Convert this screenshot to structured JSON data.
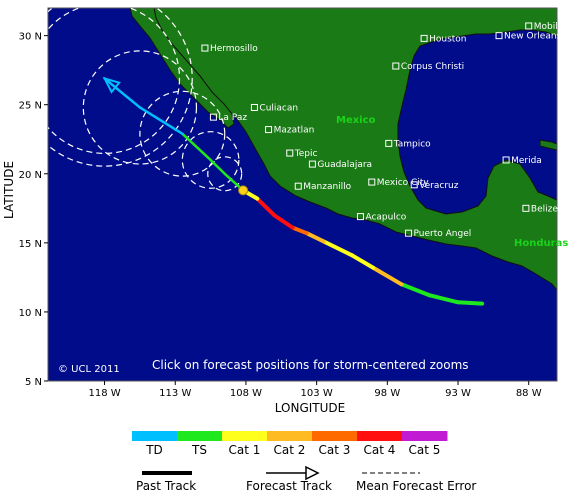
{
  "axes": {
    "lon_ticks": [
      "118 W",
      "113 W",
      "108 W",
      "103 W",
      "98 W",
      "93 W",
      "88 W"
    ],
    "lat_ticks": [
      "30 N",
      "25 N",
      "20 N",
      "15 N",
      "10 N",
      "5 N"
    ],
    "xlabel": "LONGITUDE",
    "ylabel": "LATITUDE",
    "lon_range": [
      -122,
      -86
    ],
    "lat_range": [
      5,
      32
    ]
  },
  "cities": [
    {
      "name": "Hermosillo",
      "lon": -110.9,
      "lat": 29.1
    },
    {
      "name": "Houston",
      "lon": -95.4,
      "lat": 29.8
    },
    {
      "name": "New Orleans",
      "lon": -90.1,
      "lat": 30.0
    },
    {
      "name": "Mobile",
      "lon": -88.0,
      "lat": 30.7
    },
    {
      "name": "Corpus Christi",
      "lon": -97.4,
      "lat": 27.8
    },
    {
      "name": "Culiacan",
      "lon": -107.4,
      "lat": 24.8
    },
    {
      "name": "La Paz",
      "lon": -110.3,
      "lat": 24.1
    },
    {
      "name": "Mazatlan",
      "lon": -106.4,
      "lat": 23.2
    },
    {
      "name": "Tampico",
      "lon": -97.9,
      "lat": 22.2
    },
    {
      "name": "Tepic",
      "lon": -104.9,
      "lat": 21.5
    },
    {
      "name": "Guadalajara",
      "lon": -103.3,
      "lat": 20.7
    },
    {
      "name": "Mexico City",
      "lon": -99.1,
      "lat": 19.4
    },
    {
      "name": "Manzanillo",
      "lon": -104.3,
      "lat": 19.1
    },
    {
      "name": "Veracruz",
      "lon": -96.1,
      "lat": 19.2
    },
    {
      "name": "Merida",
      "lon": -89.6,
      "lat": 21.0
    },
    {
      "name": "Acapulco",
      "lon": -99.9,
      "lat": 16.9
    },
    {
      "name": "Puerto Angel",
      "lon": -96.5,
      "lat": 15.7
    },
    {
      "name": "Belize City",
      "lon": -88.2,
      "lat": 17.5
    }
  ],
  "country_labels": [
    "Mexico",
    "Honduras"
  ],
  "watermark": "© UCL 2011",
  "hint": "Click on forecast positions for storm-centered zooms",
  "past_track": [
    {
      "lon": -91.3,
      "lat": 10.6,
      "cat": "TD"
    },
    {
      "lon": -93.0,
      "lat": 10.7,
      "cat": "TS"
    },
    {
      "lon": -95.0,
      "lat": 11.2,
      "cat": "TS"
    },
    {
      "lon": -97.0,
      "lat": 12.0,
      "cat": "TS"
    },
    {
      "lon": -99.0,
      "lat": 13.2,
      "cat": "Cat 2"
    },
    {
      "lon": -100.5,
      "lat": 14.1,
      "cat": "Cat 1"
    },
    {
      "lon": -102.5,
      "lat": 15.1,
      "cat": "Cat 1"
    },
    {
      "lon": -103.7,
      "lat": 15.7,
      "cat": "Cat 2"
    },
    {
      "lon": -104.7,
      "lat": 16.1,
      "cat": "Cat 3"
    },
    {
      "lon": -106.0,
      "lat": 17.0,
      "cat": "Cat 4"
    },
    {
      "lon": -107.2,
      "lat": 18.2,
      "cat": "Cat 4"
    },
    {
      "lon": -108.2,
      "lat": 18.8,
      "cat": "Cat 1"
    }
  ],
  "forecast_track": [
    {
      "lon": -108.2,
      "lat": 18.8,
      "cat": "TS"
    },
    {
      "lon": -109.5,
      "lat": 20.0,
      "cat": "TS"
    },
    {
      "lon": -110.5,
      "lat": 21.0,
      "cat": "TS"
    },
    {
      "lon": -112.5,
      "lat": 22.9,
      "cat": "TS"
    },
    {
      "lon": -115.5,
      "lat": 24.8,
      "cat": "TD"
    },
    {
      "lon": -118.0,
      "lat": 26.9,
      "cat": "TD"
    }
  ],
  "error_circles": [
    {
      "lon": -109.5,
      "lat": 20.0,
      "r_deg": 1.2
    },
    {
      "lon": -110.5,
      "lat": 21.0,
      "r_deg": 2.0
    },
    {
      "lon": -112.5,
      "lat": 22.9,
      "r_deg": 3.0
    },
    {
      "lon": -115.5,
      "lat": 24.8,
      "r_deg": 4.0
    },
    {
      "lon": -118.0,
      "lat": 26.9,
      "r_deg": 5.3
    },
    {
      "lon": -118.0,
      "lat": 26.9,
      "r_deg": 6.2
    }
  ],
  "legend": {
    "categories": [
      {
        "name": "TD",
        "color": "#00bfff"
      },
      {
        "name": "TS",
        "color": "#1ee81e"
      },
      {
        "name": "Cat 1",
        "color": "#ffff1e"
      },
      {
        "name": "Cat 2",
        "color": "#ffbb22"
      },
      {
        "name": "Cat 3",
        "color": "#ff6a00"
      },
      {
        "name": "Cat 4",
        "color": "#ff0f0f"
      },
      {
        "name": "Cat 5",
        "color": "#c21bd4"
      }
    ],
    "past_track_label": "Past Track",
    "forecast_track_label": "Forecast Track",
    "mean_error_label": "Mean Forecast Error"
  },
  "colors": {
    "ocean": "#000c8a",
    "land": "#1a7a16",
    "coast": "#111111"
  }
}
